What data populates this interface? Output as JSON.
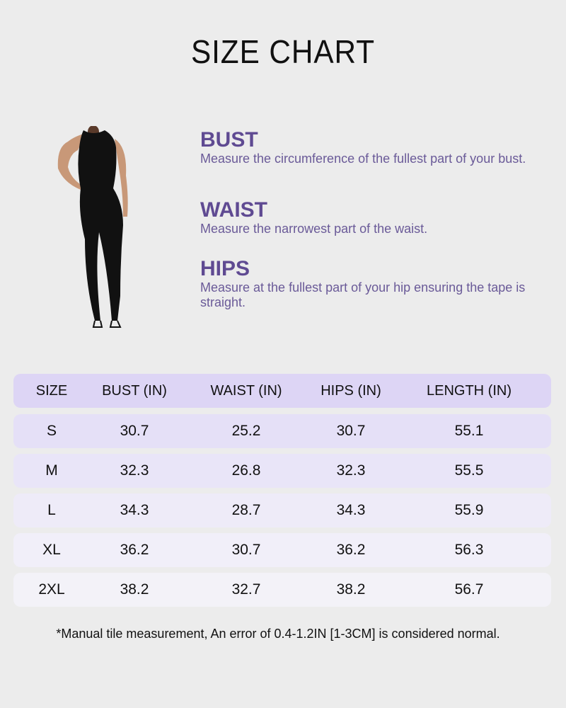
{
  "title": "SIZE CHART",
  "measurements": [
    {
      "heading": "BUST",
      "text": "Measure the circumference of the fullest part of your bust."
    },
    {
      "heading": "WAIST",
      "text": "Measure the narrowest part of the waist."
    },
    {
      "heading": "HIPS",
      "text": "Measure at the fullest part of your hip ensuring the tape is straight."
    }
  ],
  "table": {
    "headers": [
      "SIZE",
      "BUST (IN)",
      "WAIST (IN)",
      "HIPS (IN)",
      "LENGTH (IN)"
    ],
    "rows": [
      [
        "S",
        "30.7",
        "25.2",
        "30.7",
        "55.1"
      ],
      [
        "M",
        "32.3",
        "26.8",
        "32.3",
        "55.5"
      ],
      [
        "L",
        "34.3",
        "28.7",
        "34.3",
        "55.9"
      ],
      [
        "XL",
        "36.2",
        "30.7",
        "36.2",
        "56.3"
      ],
      [
        "2XL",
        "38.2",
        "32.7",
        "38.2",
        "56.7"
      ]
    ]
  },
  "note": "*Manual tile measurement, An error of 0.4-1.2IN [1-3CM] is considered normal.",
  "colors": {
    "background": "#ececec",
    "heading": "#5f4a92",
    "header_row": "#ddd5f5",
    "row_colors": [
      "#e5e0f7",
      "#e9e5f8",
      "#eeebf8",
      "#f1eff9",
      "#f3f2f8"
    ]
  }
}
